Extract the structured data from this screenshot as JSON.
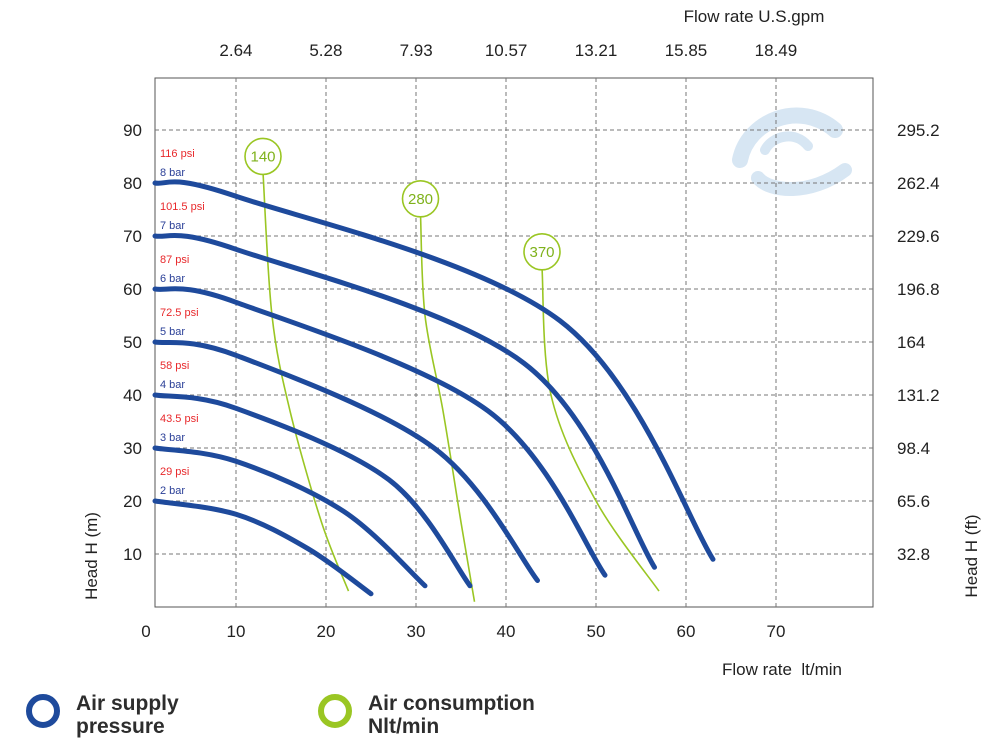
{
  "chart_data": {
    "type": "line",
    "x_bottom": {
      "label": "Flow rate  lt/min",
      "ticks": [
        0,
        10,
        20,
        30,
        40,
        50,
        60,
        70
      ],
      "lim": [
        1,
        80
      ]
    },
    "x_top": {
      "label": "Flow rate U.S.gpm",
      "ticks": [
        "2.64",
        "5.28",
        "7.93",
        "10.57",
        "13.21",
        "15.85",
        "18.49"
      ]
    },
    "y_left": {
      "label": "Head H (m)",
      "ticks": [
        10,
        20,
        30,
        40,
        50,
        60,
        70,
        80,
        90
      ],
      "lim": [
        -1,
        97
      ]
    },
    "y_right": {
      "label": "Head H (ft)",
      "ticks": [
        "32.8",
        "65.6",
        "98.4",
        "131.2",
        "164",
        "196.8",
        "229.6",
        "262.4",
        "295.2"
      ]
    },
    "grid": true,
    "series": [
      {
        "group": "air_supply_pressure",
        "psi": "29 psi",
        "bar": "2 bar",
        "points": [
          [
            1,
            20
          ],
          [
            10,
            17.5
          ],
          [
            18,
            11
          ],
          [
            25,
            2.5
          ]
        ]
      },
      {
        "group": "air_supply_pressure",
        "psi": "43.5 psi",
        "bar": "3 bar",
        "points": [
          [
            1,
            30
          ],
          [
            10,
            27.5
          ],
          [
            22,
            18
          ],
          [
            31,
            4
          ]
        ]
      },
      {
        "group": "air_supply_pressure",
        "psi": "58 psi",
        "bar": "4 bar",
        "points": [
          [
            1,
            40
          ],
          [
            10,
            37.5
          ],
          [
            27,
            24
          ],
          [
            36,
            4
          ]
        ]
      },
      {
        "group": "air_supply_pressure",
        "psi": "72.5 psi",
        "bar": "5 bar",
        "points": [
          [
            1,
            50
          ],
          [
            10,
            47.5
          ],
          [
            32,
            30
          ],
          [
            43.5,
            5
          ]
        ]
      },
      {
        "group": "air_supply_pressure",
        "psi": "87 psi",
        "bar": "6 bar",
        "points": [
          [
            1,
            60
          ],
          [
            10,
            57.5
          ],
          [
            38,
            37
          ],
          [
            51,
            6
          ]
        ]
      },
      {
        "group": "air_supply_pressure",
        "psi": "101.5 psi",
        "bar": "7 bar",
        "points": [
          [
            1,
            70
          ],
          [
            10,
            67.5
          ],
          [
            42,
            46
          ],
          [
            56.5,
            7.5
          ]
        ]
      },
      {
        "group": "air_supply_pressure",
        "psi": "116 psi",
        "bar": "8 bar",
        "points": [
          [
            1,
            80
          ],
          [
            10,
            77.5
          ],
          [
            46,
            54
          ],
          [
            63,
            9
          ]
        ]
      },
      {
        "group": "air_consumption",
        "label": "140",
        "points": [
          [
            13,
            82
          ],
          [
            14,
            55
          ],
          [
            16,
            37
          ],
          [
            19.5,
            16
          ],
          [
            22.5,
            3
          ]
        ]
      },
      {
        "group": "air_consumption",
        "label": "280",
        "points": [
          [
            30.5,
            74
          ],
          [
            31,
            55
          ],
          [
            33,
            37
          ],
          [
            35,
            16
          ],
          [
            36.5,
            1
          ]
        ]
      },
      {
        "group": "air_consumption",
        "label": "370",
        "points": [
          [
            44,
            64
          ],
          [
            45,
            40
          ],
          [
            50,
            20
          ],
          [
            57,
            3
          ]
        ]
      }
    ],
    "legend": [
      {
        "label": "Air supply\npressure",
        "color": "#1e4a9c"
      },
      {
        "label": "Air consumption\nNlt/min",
        "color": "#9ac623"
      }
    ]
  },
  "colors": {
    "pressure": "#1e4a9c",
    "consumption": "#9ac623",
    "grid": "#777777",
    "frame": "#555555",
    "watermark": "#d7e6f3"
  }
}
